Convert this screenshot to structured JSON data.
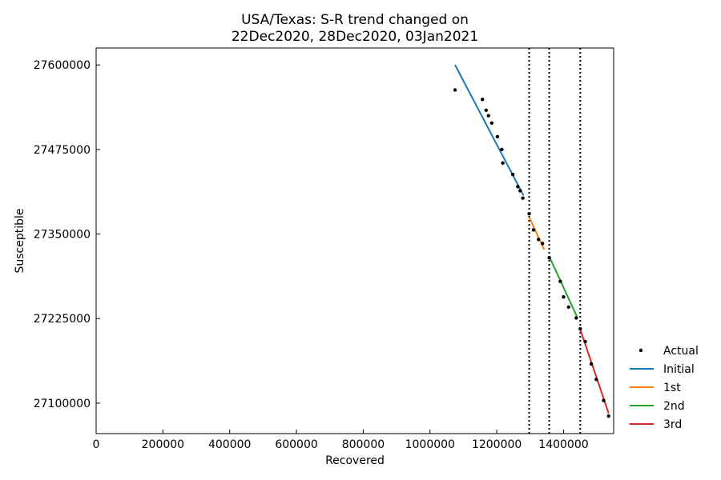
{
  "chart_data": {
    "type": "scatter",
    "title_lines": [
      "USA/Texas: S-R trend changed on",
      "22Dec2020, 28Dec2020, 03Jan2021"
    ],
    "xlabel": "Recovered",
    "ylabel": "Susceptible",
    "xlim": [
      0,
      1550000
    ],
    "ylim": [
      27055000,
      27625000
    ],
    "x_ticks": [
      0,
      200000,
      400000,
      600000,
      800000,
      1000000,
      1200000,
      1400000
    ],
    "x_tick_labels": [
      "0",
      "200000",
      "400000",
      "600000",
      "800000",
      "1000000",
      "1200000",
      "1400000"
    ],
    "y_ticks": [
      27100000,
      27225000,
      27350000,
      27475000,
      27600000
    ],
    "y_tick_labels": [
      "27100000",
      "27225000",
      "27350000",
      "27475000",
      "27600000"
    ],
    "change_points_x": [
      1297000,
      1357000,
      1450000
    ],
    "legend_position": "outside-right",
    "actual": {
      "name": "Actual",
      "color": "#000000",
      "points": [
        [
          1075000,
          27563000
        ],
        [
          1157000,
          27549000
        ],
        [
          1168000,
          27533000
        ],
        [
          1175000,
          27525000
        ],
        [
          1185000,
          27514000
        ],
        [
          1202000,
          27494000
        ],
        [
          1215000,
          27475000
        ],
        [
          1218000,
          27455000
        ],
        [
          1248000,
          27438000
        ],
        [
          1263000,
          27420000
        ],
        [
          1270000,
          27414000
        ],
        [
          1278000,
          27403000
        ],
        [
          1297000,
          27380000
        ],
        [
          1310000,
          27356000
        ],
        [
          1325000,
          27342000
        ],
        [
          1337000,
          27336000
        ],
        [
          1357000,
          27315000
        ],
        [
          1390000,
          27280000
        ],
        [
          1400000,
          27257000
        ],
        [
          1415000,
          27242000
        ],
        [
          1438000,
          27226000
        ],
        [
          1450000,
          27210000
        ],
        [
          1465000,
          27191000
        ],
        [
          1483000,
          27158000
        ],
        [
          1498000,
          27135000
        ],
        [
          1520000,
          27104000
        ],
        [
          1535000,
          27081000
        ]
      ]
    },
    "series": [
      {
        "name": "Initial",
        "color": "#1f77b4",
        "x": [
          1075000,
          1280000
        ],
        "y": [
          27600000,
          27407000
        ]
      },
      {
        "name": "1st",
        "color": "#ff7f0e",
        "x": [
          1297000,
          1342000
        ],
        "y": [
          27375000,
          27327000
        ]
      },
      {
        "name": "2nd",
        "color": "#2ca02c",
        "x": [
          1357000,
          1440000
        ],
        "y": [
          27317000,
          27228000
        ]
      },
      {
        "name": "3rd",
        "color": "#d62728",
        "x": [
          1450000,
          1535000
        ],
        "y": [
          27209000,
          27085000
        ]
      }
    ]
  }
}
